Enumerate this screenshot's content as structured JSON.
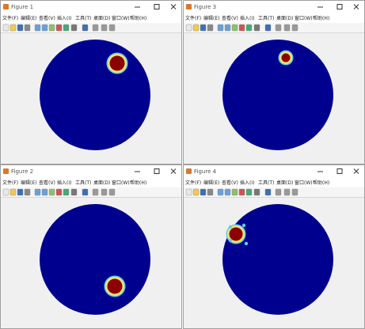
{
  "menu": [
    "文件(F)",
    "编辑(E)",
    "查看(V)",
    "插入(I)",
    "工具(T)",
    "桌面(D)",
    "窗口(W)",
    "帮助(H)"
  ],
  "windows": [
    {
      "title": "Figure 1"
    },
    {
      "title": "Figure 3"
    },
    {
      "title": "Figure 2"
    },
    {
      "title": "Figure 4"
    }
  ]
}
